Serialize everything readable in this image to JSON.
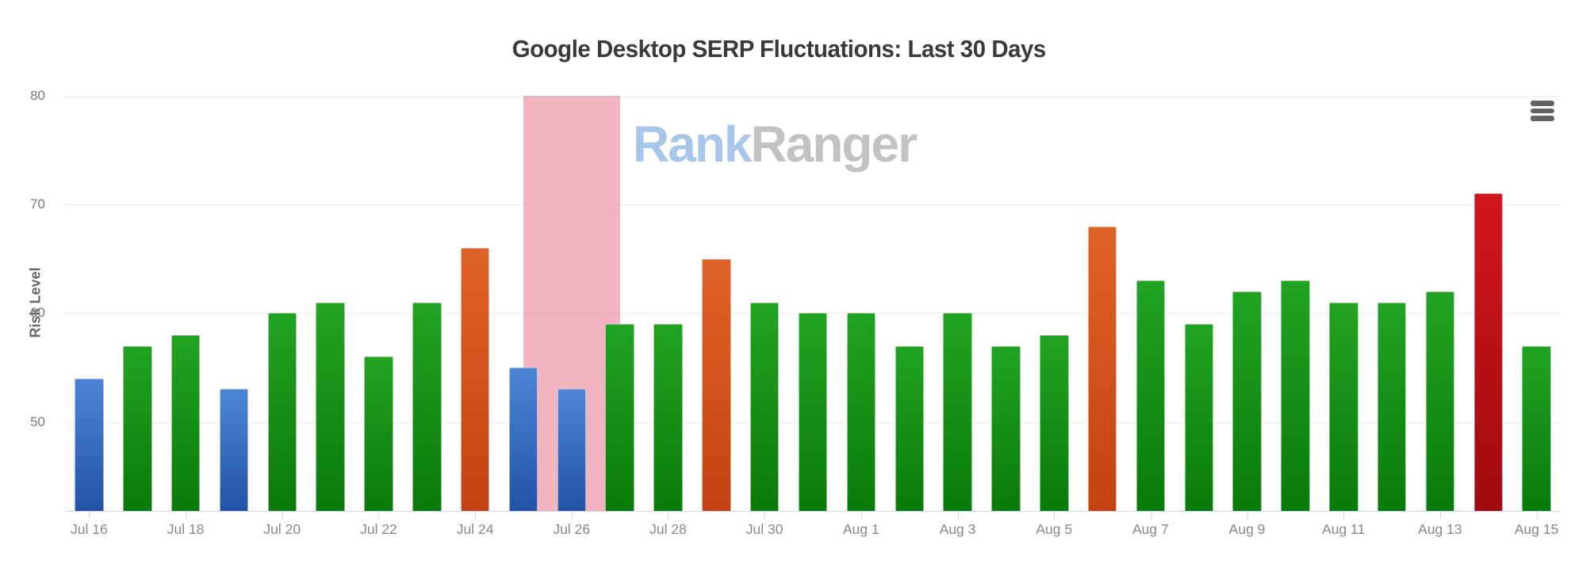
{
  "title": "Google Desktop SERP Fluctuations: Last 30 Days",
  "watermark": {
    "part1": "Rank",
    "part2": "Ranger"
  },
  "context_menu": {
    "icon": "hamburger-icon",
    "color": "#636363"
  },
  "chart_data": {
    "type": "bar",
    "title": "Google Desktop SERP Fluctuations: Last 30 Days",
    "xlabel": "",
    "ylabel": "Risk Level",
    "ylim": [
      41.8,
      80
    ],
    "yticks": [
      50,
      60,
      70,
      80
    ],
    "ytick_labels": [
      "50",
      "60",
      "70",
      "80"
    ],
    "grid": "horizontal",
    "legend": "none",
    "x_label_step": 2,
    "categories": [
      "Jul 16",
      "Jul 17",
      "Jul 18",
      "Jul 19",
      "Jul 20",
      "Jul 21",
      "Jul 22",
      "Jul 23",
      "Jul 24",
      "Jul 25",
      "Jul 26",
      "Jul 27",
      "Jul 28",
      "Jul 29",
      "Jul 30",
      "Jul 31",
      "Aug 1",
      "Aug 2",
      "Aug 3",
      "Aug 4",
      "Aug 5",
      "Aug 6",
      "Aug 7",
      "Aug 8",
      "Aug 9",
      "Aug 10",
      "Aug 11",
      "Aug 12",
      "Aug 13",
      "Aug 14",
      "Aug 15"
    ],
    "values": [
      54,
      57,
      58,
      53,
      60,
      61,
      56,
      61,
      66,
      55,
      53,
      59,
      59,
      65,
      61,
      60,
      60,
      57,
      60,
      57,
      58,
      68,
      63,
      59,
      62,
      63,
      61,
      61,
      62,
      71,
      57
    ],
    "colors": [
      "blue",
      "green",
      "green",
      "blue",
      "green",
      "green",
      "green",
      "green",
      "orange",
      "blue",
      "blue",
      "green",
      "green",
      "orange",
      "green",
      "green",
      "green",
      "green",
      "green",
      "green",
      "green",
      "orange",
      "green",
      "green",
      "green",
      "green",
      "green",
      "green",
      "green",
      "red",
      "green"
    ],
    "bar_colors": {
      "blue": [
        "#4d86d6",
        "#2152a6"
      ],
      "green": [
        "#22a322",
        "#0a7a0a"
      ],
      "orange": [
        "#de6328",
        "#c44212"
      ],
      "red": [
        "#d0161c",
        "#a00a10"
      ]
    },
    "plot_band": {
      "from_index": 9,
      "to_index": 11,
      "color": "rgba(232,105,133,0.5)",
      "around_category": "Jul 26"
    },
    "axis_color": "#ccd6eb",
    "gridline_color": "#ededed"
  }
}
